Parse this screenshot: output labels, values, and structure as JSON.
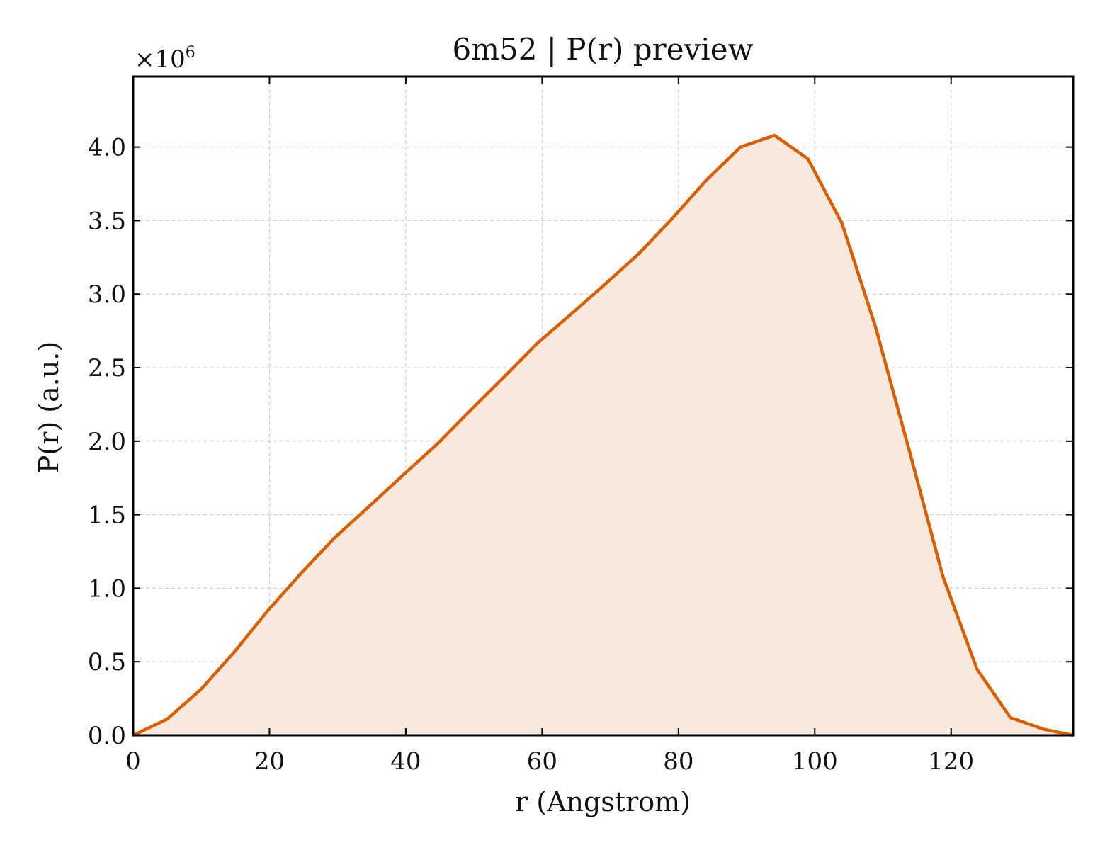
{
  "chart_data": {
    "type": "area",
    "title": "6m52 | P(r) preview",
    "xlabel": "r (Angstrom)",
    "ylabel": "P(r) (a.u.)",
    "y_offset_label": "×10",
    "y_offset_exponent": "6",
    "xlim": [
      0,
      137.9
    ],
    "ylim": [
      0,
      4.48
    ],
    "y_scale_factor": 1000000,
    "xticks": [
      0,
      20,
      40,
      60,
      80,
      100,
      120
    ],
    "xtick_labels": [
      "0",
      "20",
      "40",
      "60",
      "80",
      "100",
      "120"
    ],
    "yticks": [
      0.0,
      0.5,
      1.0,
      1.5,
      2.0,
      2.5,
      3.0,
      3.5,
      4.0
    ],
    "ytick_labels": [
      "0.0",
      "0.5",
      "1.0",
      "1.5",
      "2.0",
      "2.5",
      "3.0",
      "3.5",
      "4.0"
    ],
    "grid": true,
    "line_color": "#d95f02",
    "fill_color": "#f8e9df",
    "x": [
      0,
      5,
      9.9,
      14.9,
      19.8,
      24.8,
      29.7,
      34.7,
      39.6,
      44.6,
      49.5,
      54.5,
      59.4,
      64.4,
      69.3,
      74.3,
      79.2,
      84.2,
      89.1,
      94.1,
      99.0,
      104.0,
      108.9,
      113.9,
      118.8,
      123.8,
      128.7,
      133.7,
      137.9
    ],
    "y": [
      0.0,
      0.11,
      0.31,
      0.57,
      0.85,
      1.11,
      1.35,
      1.56,
      1.77,
      1.98,
      2.21,
      2.44,
      2.67,
      2.87,
      3.07,
      3.28,
      3.52,
      3.78,
      4.0,
      4.08,
      3.92,
      3.48,
      2.78,
      1.93,
      1.08,
      0.45,
      0.12,
      0.04,
      0.0
    ]
  }
}
